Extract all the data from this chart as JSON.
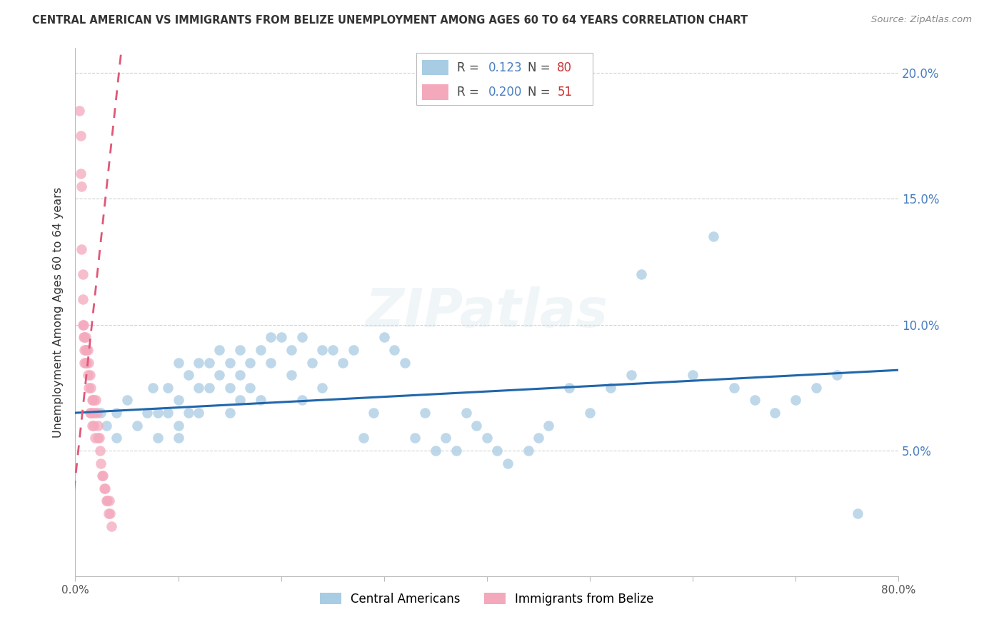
{
  "title": "CENTRAL AMERICAN VS IMMIGRANTS FROM BELIZE UNEMPLOYMENT AMONG AGES 60 TO 64 YEARS CORRELATION CHART",
  "source": "Source: ZipAtlas.com",
  "ylabel": "Unemployment Among Ages 60 to 64 years",
  "xlim": [
    0.0,
    0.8
  ],
  "ylim": [
    0.0,
    0.21
  ],
  "xticks": [
    0.0,
    0.1,
    0.2,
    0.3,
    0.4,
    0.5,
    0.6,
    0.7,
    0.8
  ],
  "xticklabels": [
    "0.0%",
    "",
    "",
    "",
    "",
    "",
    "",
    "",
    "80.0%"
  ],
  "yticks_right": [
    0.0,
    0.05,
    0.1,
    0.15,
    0.2
  ],
  "yticklabels_right": [
    "",
    "5.0%",
    "10.0%",
    "15.0%",
    "20.0%"
  ],
  "blue_color": "#a8cce4",
  "pink_color": "#f4a8bc",
  "blue_line_color": "#2166ac",
  "pink_line_color": "#e05878",
  "R_blue": 0.123,
  "N_blue": 80,
  "R_pink": 0.2,
  "N_pink": 51,
  "legend_label_blue": "Central Americans",
  "legend_label_pink": "Immigrants from Belize",
  "watermark": "ZIPatlas",
  "blue_trendline": [
    0.0,
    0.065,
    0.8,
    0.082
  ],
  "pink_trendline": [
    -0.005,
    0.02,
    0.045,
    0.21
  ],
  "blue_scatter_x": [
    0.025,
    0.03,
    0.04,
    0.04,
    0.05,
    0.06,
    0.07,
    0.075,
    0.08,
    0.08,
    0.09,
    0.09,
    0.1,
    0.1,
    0.1,
    0.1,
    0.11,
    0.11,
    0.12,
    0.12,
    0.12,
    0.13,
    0.13,
    0.14,
    0.14,
    0.15,
    0.15,
    0.15,
    0.16,
    0.16,
    0.16,
    0.17,
    0.17,
    0.18,
    0.18,
    0.19,
    0.19,
    0.2,
    0.21,
    0.21,
    0.22,
    0.22,
    0.23,
    0.24,
    0.24,
    0.25,
    0.26,
    0.27,
    0.28,
    0.29,
    0.3,
    0.31,
    0.32,
    0.33,
    0.34,
    0.35,
    0.36,
    0.37,
    0.38,
    0.39,
    0.4,
    0.41,
    0.42,
    0.44,
    0.45,
    0.46,
    0.48,
    0.5,
    0.52,
    0.54,
    0.55,
    0.6,
    0.62,
    0.64,
    0.66,
    0.68,
    0.7,
    0.72,
    0.74,
    0.76
  ],
  "blue_scatter_y": [
    0.065,
    0.06,
    0.065,
    0.055,
    0.07,
    0.06,
    0.065,
    0.075,
    0.065,
    0.055,
    0.075,
    0.065,
    0.085,
    0.07,
    0.06,
    0.055,
    0.08,
    0.065,
    0.085,
    0.075,
    0.065,
    0.085,
    0.075,
    0.09,
    0.08,
    0.085,
    0.075,
    0.065,
    0.09,
    0.08,
    0.07,
    0.085,
    0.075,
    0.09,
    0.07,
    0.095,
    0.085,
    0.095,
    0.09,
    0.08,
    0.095,
    0.07,
    0.085,
    0.09,
    0.075,
    0.09,
    0.085,
    0.09,
    0.055,
    0.065,
    0.095,
    0.09,
    0.085,
    0.055,
    0.065,
    0.05,
    0.055,
    0.05,
    0.065,
    0.06,
    0.055,
    0.05,
    0.045,
    0.05,
    0.055,
    0.06,
    0.075,
    0.065,
    0.075,
    0.08,
    0.12,
    0.08,
    0.135,
    0.075,
    0.07,
    0.065,
    0.07,
    0.075,
    0.08,
    0.025
  ],
  "pink_scatter_x": [
    0.004,
    0.005,
    0.005,
    0.006,
    0.006,
    0.007,
    0.007,
    0.007,
    0.008,
    0.008,
    0.009,
    0.009,
    0.009,
    0.01,
    0.01,
    0.01,
    0.011,
    0.011,
    0.012,
    0.012,
    0.013,
    0.013,
    0.014,
    0.014,
    0.015,
    0.015,
    0.016,
    0.016,
    0.017,
    0.017,
    0.018,
    0.018,
    0.019,
    0.019,
    0.02,
    0.021,
    0.022,
    0.022,
    0.023,
    0.024,
    0.025,
    0.026,
    0.027,
    0.028,
    0.029,
    0.03,
    0.031,
    0.032,
    0.033,
    0.034,
    0.035
  ],
  "pink_scatter_y": [
    0.185,
    0.175,
    0.16,
    0.155,
    0.13,
    0.12,
    0.11,
    0.1,
    0.1,
    0.095,
    0.095,
    0.09,
    0.085,
    0.095,
    0.09,
    0.085,
    0.09,
    0.085,
    0.09,
    0.08,
    0.085,
    0.075,
    0.08,
    0.065,
    0.075,
    0.065,
    0.07,
    0.06,
    0.07,
    0.065,
    0.07,
    0.06,
    0.065,
    0.055,
    0.07,
    0.065,
    0.06,
    0.055,
    0.055,
    0.05,
    0.045,
    0.04,
    0.04,
    0.035,
    0.035,
    0.03,
    0.03,
    0.025,
    0.03,
    0.025,
    0.02
  ]
}
